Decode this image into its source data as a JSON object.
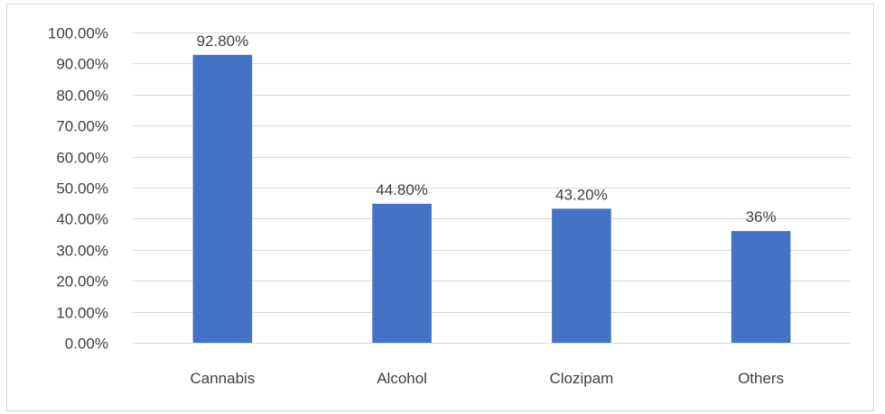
{
  "chart_data": {
    "type": "bar",
    "title": "",
    "xlabel": "",
    "ylabel": "",
    "categories": [
      "Cannabis",
      "Alcohol",
      "Clozipam",
      "Others"
    ],
    "values": [
      92.8,
      44.8,
      43.2,
      36
    ],
    "data_labels": [
      "92.80%",
      "44.80%",
      "43.20%",
      "36%"
    ],
    "ylim": [
      0,
      100
    ],
    "y_ticks": [
      0,
      10,
      20,
      30,
      40,
      50,
      60,
      70,
      80,
      90,
      100
    ],
    "y_tick_labels": [
      "0.00%",
      "10.00%",
      "20.00%",
      "30.00%",
      "40.00%",
      "50.00%",
      "60.00%",
      "70.00%",
      "80.00%",
      "90.00%",
      "100.00%"
    ],
    "grid": true,
    "legend": "none",
    "bar_color": "#4472C4",
    "grid_color": "#d9d9d9"
  }
}
